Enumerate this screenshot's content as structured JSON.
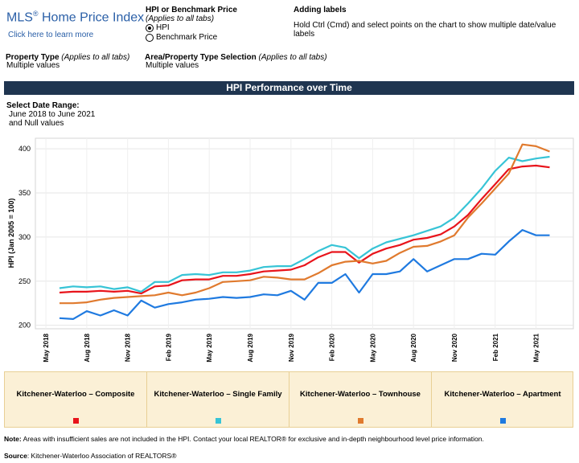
{
  "header": {
    "title": "MLS",
    "title_sup": "®",
    "title_rest": " Home Price Index",
    "learn_link": "Click here to learn more"
  },
  "hpi_selector": {
    "title": "HPI or Benchmark Price",
    "subtitle": "(Applies to all tabs)",
    "options": [
      {
        "label": "HPI",
        "selected": true
      },
      {
        "label": "Benchmark Price",
        "selected": false
      }
    ]
  },
  "adding_labels": {
    "title": "Adding labels",
    "text": "Hold Ctrl (Cmd) and select points on the chart to show multiple date/value labels"
  },
  "property_type": {
    "label": "Property Type",
    "qualifier": "(Applies to all tabs)",
    "value": "Multiple values"
  },
  "area_selection": {
    "label": "Area/Property Type Selection",
    "qualifier": "(Applies to all tabs)",
    "value": "Multiple values"
  },
  "section_title": "HPI Performance over Time",
  "date_range": {
    "label": "Select Date Range:",
    "lines": [
      "June 2018 to June 2021",
      "and Null values"
    ]
  },
  "chart_data": {
    "type": "line",
    "title": "",
    "ylabel": "HPI (Jan 2005 = 100)",
    "xlabel": "",
    "ylim": [
      196,
      412
    ],
    "yticks": [
      200,
      250,
      300,
      350,
      400
    ],
    "x": [
      "2018-06",
      "2018-07",
      "2018-08",
      "2018-09",
      "2018-10",
      "2018-11",
      "2018-12",
      "2019-01",
      "2019-02",
      "2019-03",
      "2019-04",
      "2019-05",
      "2019-06",
      "2019-07",
      "2019-08",
      "2019-09",
      "2019-10",
      "2019-11",
      "2019-12",
      "2020-01",
      "2020-02",
      "2020-03",
      "2020-04",
      "2020-05",
      "2020-06",
      "2020-07",
      "2020-08",
      "2020-09",
      "2020-10",
      "2020-11",
      "2020-12",
      "2021-01",
      "2021-02",
      "2021-03",
      "2021-04",
      "2021-05",
      "2021-06"
    ],
    "xtick_labels": [
      {
        "label": "May 2018",
        "index": -1
      },
      {
        "label": "Aug 2018",
        "index": 2
      },
      {
        "label": "Nov 2018",
        "index": 5
      },
      {
        "label": "Feb 2019",
        "index": 8
      },
      {
        "label": "May 2019",
        "index": 11
      },
      {
        "label": "Aug 2019",
        "index": 14
      },
      {
        "label": "Nov 2019",
        "index": 17
      },
      {
        "label": "Feb 2020",
        "index": 20
      },
      {
        "label": "May 2020",
        "index": 23
      },
      {
        "label": "Aug 2020",
        "index": 26
      },
      {
        "label": "Nov 2020",
        "index": 29
      },
      {
        "label": "Feb 2021",
        "index": 32
      },
      {
        "label": "May 2021",
        "index": 35
      }
    ],
    "grid": true,
    "series": [
      {
        "name": "Kitchener-Waterloo – Composite",
        "color": "#e8141b",
        "values": [
          237,
          238,
          238,
          239,
          238,
          239,
          236,
          244,
          245,
          251,
          252,
          252,
          256,
          256,
          258,
          261,
          262,
          263,
          268,
          277,
          283,
          283,
          271,
          281,
          287,
          291,
          297,
          299,
          303,
          312,
          325,
          343,
          360,
          377,
          380,
          381,
          379
        ]
      },
      {
        "name": "Kitchener-Waterloo – Single Family",
        "color": "#37c4d6",
        "values": [
          242,
          244,
          243,
          244,
          241,
          243,
          238,
          249,
          249,
          257,
          258,
          257,
          260,
          260,
          262,
          266,
          267,
          267,
          275,
          284,
          291,
          288,
          276,
          287,
          294,
          298,
          302,
          307,
          312,
          322,
          338,
          355,
          375,
          390,
          386,
          389,
          391
        ]
      },
      {
        "name": "Kitchener-Waterloo – Townhouse",
        "color": "#e07a2e",
        "values": [
          225,
          225,
          226,
          229,
          231,
          232,
          233,
          234,
          237,
          234,
          237,
          242,
          249,
          250,
          251,
          255,
          254,
          252,
          252,
          259,
          268,
          272,
          273,
          270,
          273,
          282,
          289,
          290,
          295,
          302,
          322,
          338,
          355,
          372,
          405,
          403,
          397
        ]
      },
      {
        "name": "Kitchener-Waterloo – Apartment",
        "color": "#1f7ae0",
        "values": [
          208,
          207,
          216,
          211,
          217,
          211,
          228,
          220,
          224,
          226,
          229,
          230,
          232,
          231,
          232,
          235,
          234,
          239,
          229,
          248,
          248,
          258,
          237,
          258,
          258,
          261,
          275,
          261,
          268,
          275,
          275,
          281,
          280,
          295,
          308,
          302,
          302
        ]
      }
    ]
  },
  "note": {
    "label": "Note:",
    "text": " Areas with insufficient sales are not included in the HPI. Contact your local REALTOR® for exclusive and in-depth neighbourhood level price information."
  },
  "source": {
    "label": "Source",
    "text": ": Kitchener-Waterloo Association of REALTORS®"
  }
}
